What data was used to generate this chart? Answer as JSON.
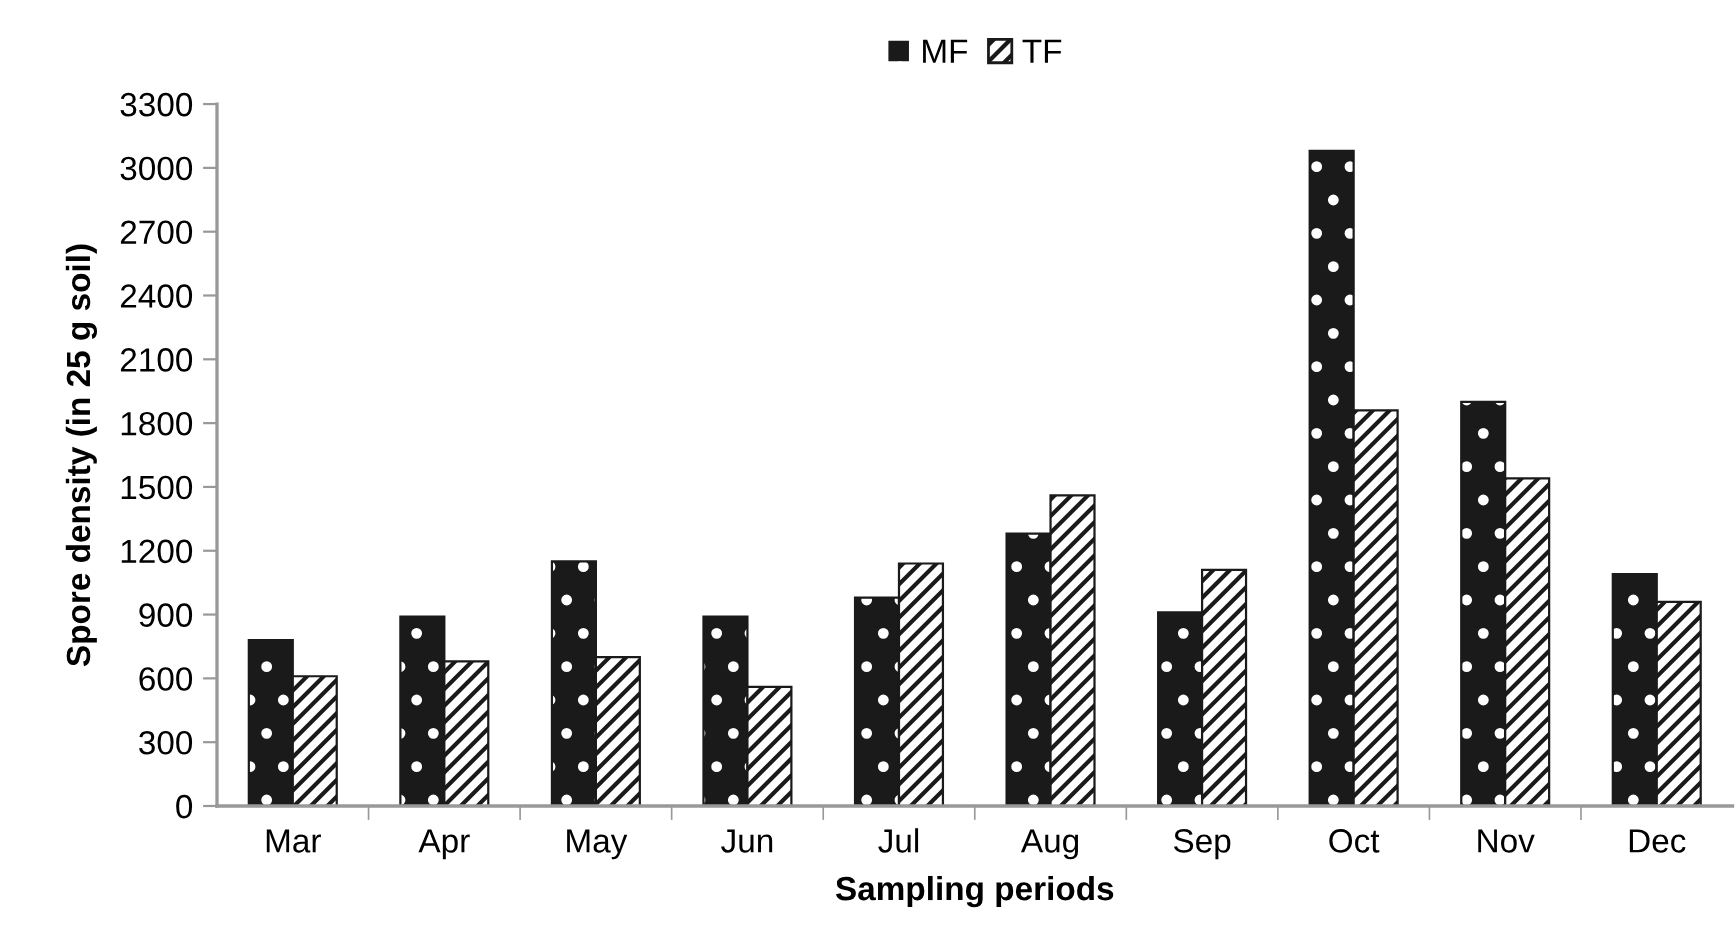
{
  "chart_data": {
    "type": "bar",
    "xlabel": "Sampling periods",
    "ylabel": "Spore density (in 25 g soil)",
    "categories": [
      "Mar",
      "Apr",
      "May",
      "Jun",
      "Jul",
      "Aug",
      "Sep",
      "Oct",
      "Nov",
      "Dec"
    ],
    "series": [
      {
        "name": "MF",
        "color": "#1a1a1a",
        "values": [
          780,
          890,
          1150,
          890,
          980,
          1280,
          910,
          3080,
          1900,
          1090
        ]
      },
      {
        "name": "TF",
        "color": "#ffffff",
        "values": [
          610,
          680,
          700,
          560,
          1140,
          1460,
          1110,
          1860,
          1540,
          960
        ]
      }
    ],
    "ylim": [
      0,
      3300
    ],
    "yticks": [
      0,
      300,
      600,
      900,
      1200,
      1500,
      1800,
      2100,
      2400,
      2700,
      3000,
      3300
    ],
    "grid": false,
    "legend": "top"
  }
}
